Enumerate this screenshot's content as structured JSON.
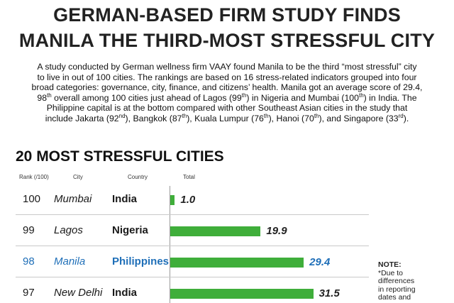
{
  "header": {
    "title_line1": "GERMAN-BASED FIRM STUDY FINDS",
    "title_line2": "MANILA THE THIRD-MOST STRESSFUL CITY"
  },
  "intro": {
    "l1": "A study conducted by German wellness firm VAAY found Manila to be the third “most stressful” city",
    "l2": "to live in out of 100 cities. The rankings are based on 16 stress-related indicators grouped into four",
    "l3": "broad categories: governance, city, finance, and citizens’ health. Manila got an average score of 29.4,",
    "l4a": "98",
    "l4b": "th",
    "l4c": " overall among 100 cities just ahead of Lagos (99",
    "l4d": "th",
    "l4e": ") in Nigeria and Mumbai (100",
    "l4f": "th",
    "l4g": ") in India. The",
    "l5": "Philippine capital is at the bottom compared with other Southeast Asian cities in the study that",
    "l6a": "include Jakarta (92",
    "l6b": "nd",
    "l6c": "), Bangkok (87",
    "l6d": "th",
    "l6e": "), Kuala Lumpur (76",
    "l6f": "th",
    "l6g": "), Hanoi (70",
    "l6h": "th",
    "l6i": "), and Singapore (33",
    "l6j": "rd",
    "l6k": ")."
  },
  "section_title": "20 MOST STRESSFUL CITIES",
  "columns": {
    "rank": "Rank (/100)",
    "city": "City",
    "country": "Country",
    "total": "Total"
  },
  "note": {
    "title": "NOTE:",
    "text": "*Due to differences in reporting dates and"
  },
  "colors": {
    "bar": "#3fae3a",
    "highlight": "#1f6fb8"
  },
  "chart_data": {
    "type": "bar",
    "orientation": "horizontal",
    "title": "20 MOST STRESSFUL CITIES",
    "columns": [
      "Rank (/100)",
      "City",
      "Country",
      "Total"
    ],
    "rows": [
      {
        "rank": "100",
        "city": "Mumbai",
        "country": "India",
        "total": 1.0,
        "label": "1.0",
        "highlight": false
      },
      {
        "rank": "99",
        "city": "Lagos",
        "country": "Nigeria",
        "total": 19.9,
        "label": "19.9",
        "highlight": false
      },
      {
        "rank": "98",
        "city": "Manila",
        "country": "Philippines",
        "total": 29.4,
        "label": "29.4",
        "highlight": true
      },
      {
        "rank": "97",
        "city": "New Delhi",
        "country": "India",
        "total": 31.5,
        "label": "31.5",
        "highlight": false
      }
    ],
    "xlim": [
      0,
      40
    ]
  }
}
